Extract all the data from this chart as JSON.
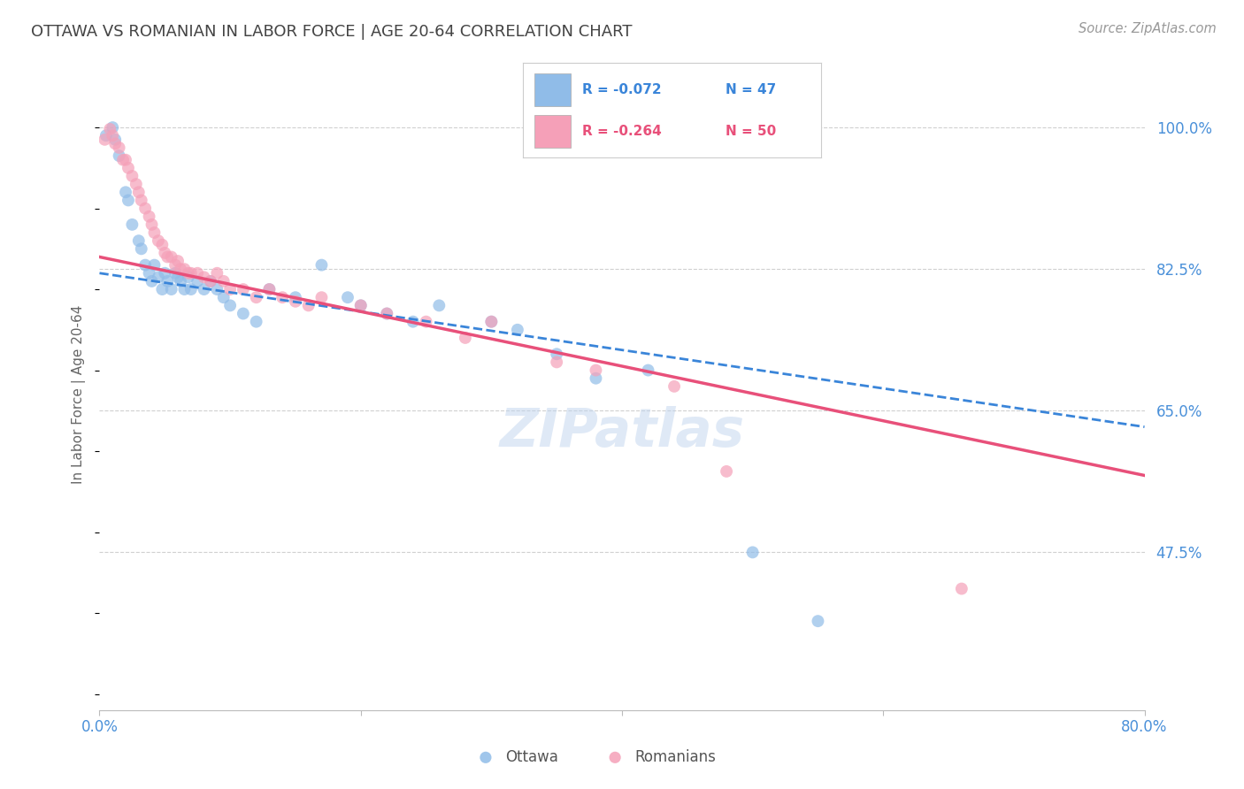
{
  "title": "OTTAWA VS ROMANIAN IN LABOR FORCE | AGE 20-64 CORRELATION CHART",
  "source": "Source: ZipAtlas.com",
  "ylabel": "In Labor Force | Age 20-64",
  "xlim": [
    0.0,
    0.8
  ],
  "ylim": [
    0.28,
    1.06
  ],
  "ytick_values": [
    0.475,
    0.65,
    0.825,
    1.0
  ],
  "ytick_labels": [
    "47.5%",
    "65.0%",
    "82.5%",
    "100.0%"
  ],
  "xtick_values": [
    0.0,
    0.2,
    0.4,
    0.6,
    0.8
  ],
  "xtick_labels": [
    "0.0%",
    "",
    "",
    "",
    "80.0%"
  ],
  "legend_r_blue": "R = -0.072",
  "legend_n_blue": "N = 47",
  "legend_r_pink": "R = -0.264",
  "legend_n_pink": "N = 50",
  "legend_label_blue": "Ottawa",
  "legend_label_pink": "Romanians",
  "watermark": "ZIPatlas",
  "blue_scatter_x": [
    0.005,
    0.01,
    0.012,
    0.015,
    0.02,
    0.022,
    0.025,
    0.03,
    0.032,
    0.035,
    0.038,
    0.04,
    0.042,
    0.045,
    0.048,
    0.05,
    0.052,
    0.055,
    0.058,
    0.06,
    0.062,
    0.065,
    0.068,
    0.07,
    0.075,
    0.08,
    0.085,
    0.09,
    0.095,
    0.1,
    0.11,
    0.12,
    0.13,
    0.15,
    0.17,
    0.19,
    0.2,
    0.22,
    0.24,
    0.26,
    0.3,
    0.32,
    0.35,
    0.38,
    0.42,
    0.5,
    0.55
  ],
  "blue_scatter_y": [
    0.99,
    1.0,
    0.985,
    0.965,
    0.92,
    0.91,
    0.88,
    0.86,
    0.85,
    0.83,
    0.82,
    0.81,
    0.83,
    0.815,
    0.8,
    0.82,
    0.81,
    0.8,
    0.82,
    0.815,
    0.81,
    0.8,
    0.815,
    0.8,
    0.81,
    0.8,
    0.81,
    0.8,
    0.79,
    0.78,
    0.77,
    0.76,
    0.8,
    0.79,
    0.83,
    0.79,
    0.78,
    0.77,
    0.76,
    0.78,
    0.76,
    0.75,
    0.72,
    0.69,
    0.7,
    0.475,
    0.39
  ],
  "pink_scatter_x": [
    0.004,
    0.008,
    0.01,
    0.012,
    0.015,
    0.018,
    0.02,
    0.022,
    0.025,
    0.028,
    0.03,
    0.032,
    0.035,
    0.038,
    0.04,
    0.042,
    0.045,
    0.048,
    0.05,
    0.052,
    0.055,
    0.058,
    0.06,
    0.062,
    0.065,
    0.068,
    0.07,
    0.075,
    0.08,
    0.085,
    0.09,
    0.095,
    0.1,
    0.11,
    0.12,
    0.13,
    0.14,
    0.15,
    0.16,
    0.17,
    0.2,
    0.22,
    0.25,
    0.28,
    0.3,
    0.35,
    0.38,
    0.44,
    0.48,
    0.66
  ],
  "pink_scatter_y": [
    0.985,
    0.998,
    0.99,
    0.98,
    0.975,
    0.96,
    0.96,
    0.95,
    0.94,
    0.93,
    0.92,
    0.91,
    0.9,
    0.89,
    0.88,
    0.87,
    0.86,
    0.855,
    0.845,
    0.84,
    0.84,
    0.83,
    0.835,
    0.825,
    0.825,
    0.82,
    0.82,
    0.82,
    0.815,
    0.81,
    0.82,
    0.81,
    0.8,
    0.8,
    0.79,
    0.8,
    0.79,
    0.785,
    0.78,
    0.79,
    0.78,
    0.77,
    0.76,
    0.74,
    0.76,
    0.71,
    0.7,
    0.68,
    0.575,
    0.43
  ],
  "blue_line_x0": 0.0,
  "blue_line_x1": 0.8,
  "blue_line_y0": 0.82,
  "blue_line_y1": 0.63,
  "pink_line_x0": 0.0,
  "pink_line_x1": 0.8,
  "pink_line_y0": 0.84,
  "pink_line_y1": 0.57,
  "scatter_size": 100,
  "scatter_alpha": 0.7,
  "blue_scatter_color": "#90bce8",
  "pink_scatter_color": "#f5a0b8",
  "blue_line_color": "#3a85d9",
  "pink_line_color": "#e8507a",
  "grid_color": "#d0d0d0",
  "title_color": "#444444",
  "axis_color": "#4a90d9",
  "background_color": "#ffffff"
}
